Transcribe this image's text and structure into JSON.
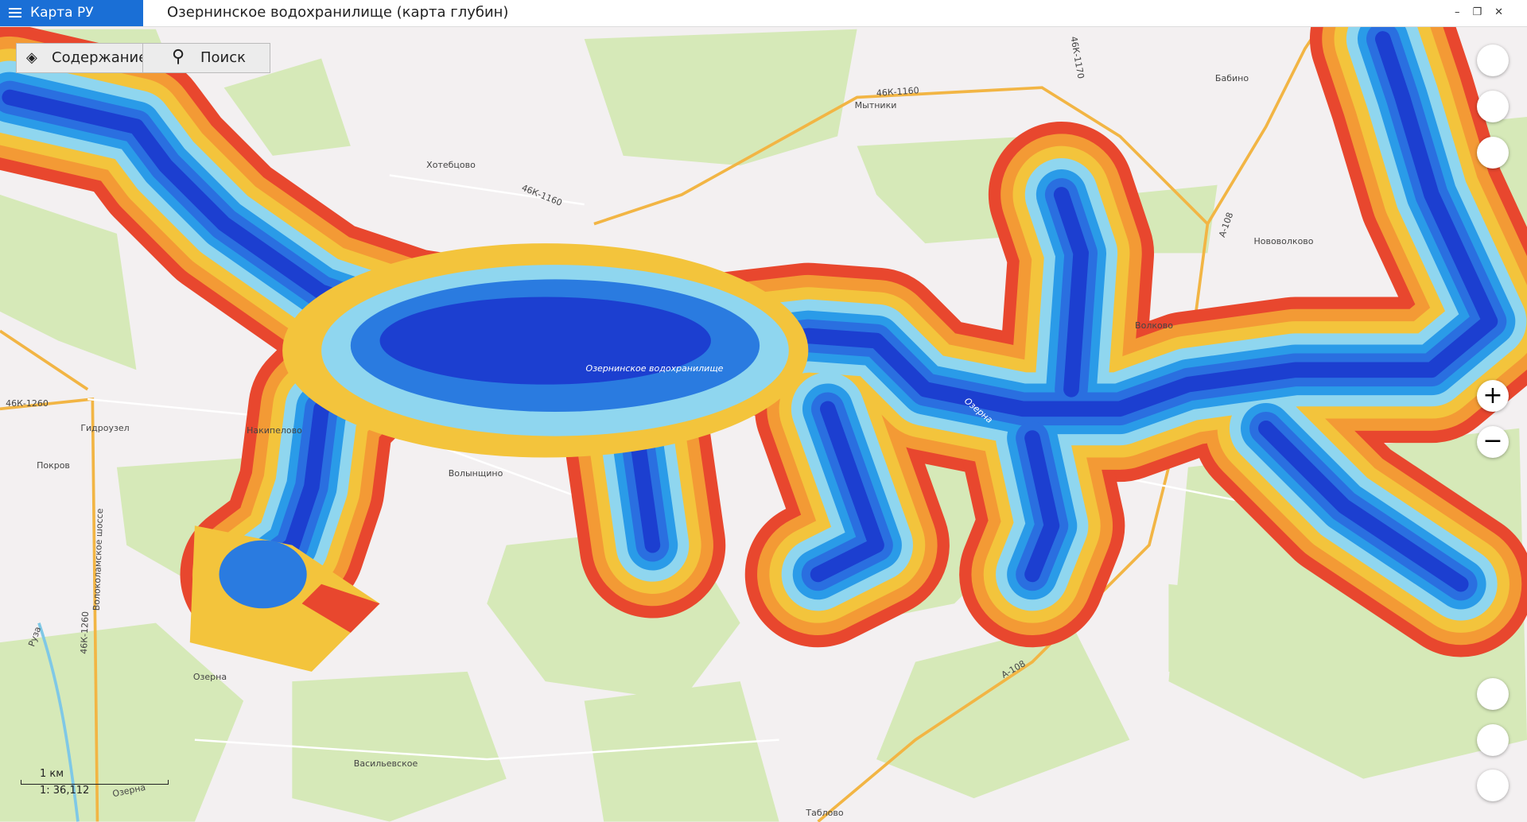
{
  "app": {
    "menu_title": "Карта РУ",
    "window_title": "Озернинское водохранилище (карта глубин)"
  },
  "toolbar": {
    "contents": "Содержание",
    "search": "Поиск"
  },
  "map": {
    "labels": [
      "Хотебцово",
      "46К-1160",
      "Мытники",
      "46К-1160",
      "46К-1170",
      "Бабино",
      "Нововолково",
      "А-108",
      "Волково",
      "46К-1260",
      "Гидроузел",
      "Накипелово",
      "Покров",
      "Волынщино",
      "Озернинское водохранилище",
      "Озерна",
      "Волоколамское шоссе",
      "46К-1260",
      "Руза",
      "Озерна",
      "А-108",
      "Васильевское",
      "Таблово",
      "Озерна"
    ]
  },
  "scale": {
    "distance": "1 км",
    "ratio": "1: 36,112"
  }
}
